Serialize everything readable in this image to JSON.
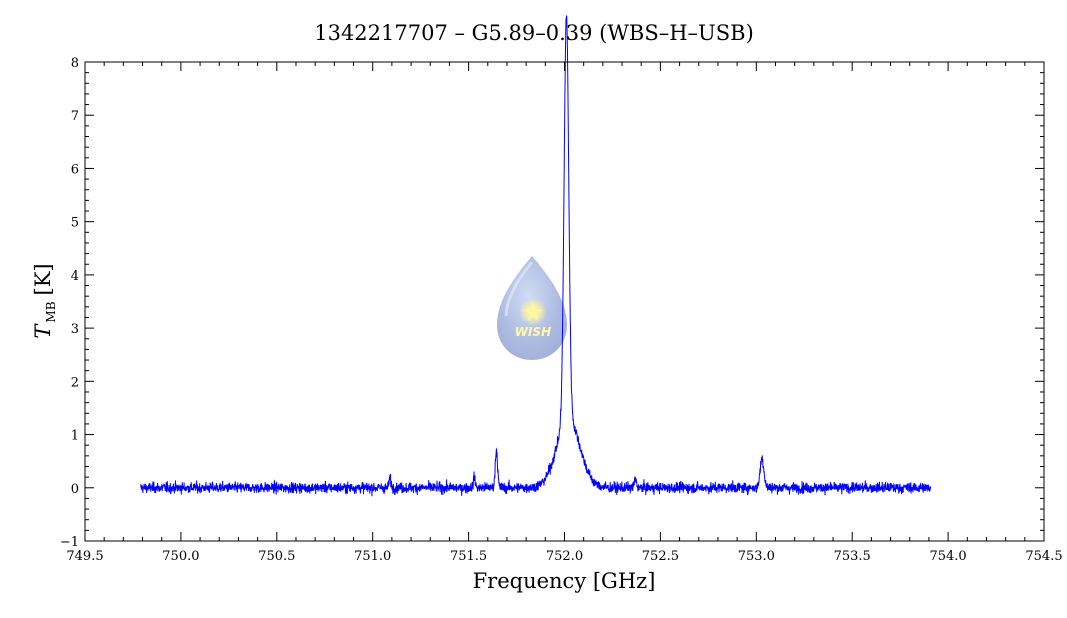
{
  "chart_data": {
    "type": "line",
    "title": "1342217707 – G5.89–0.39 (WBS–H–USB)",
    "xlabel": "Frequency [GHz]",
    "ylabel_main": "T",
    "ylabel_sub": "MB",
    "ylabel_unit": "[K]",
    "xlim": [
      749.5,
      754.5
    ],
    "ylim": [
      -1,
      8
    ],
    "x_ticks": [
      749.5,
      750.0,
      750.5,
      751.0,
      751.5,
      752.0,
      752.5,
      753.0,
      753.5,
      754.0,
      754.5
    ],
    "x_tick_labels": [
      "749.5",
      "750.0",
      "750.5",
      "751.0",
      "751.5",
      "752.0",
      "752.5",
      "753.0",
      "753.5",
      "754.0",
      "754.5"
    ],
    "y_ticks": [
      -1,
      0,
      1,
      2,
      3,
      4,
      5,
      6,
      7,
      8
    ],
    "y_tick_labels": [
      "−1",
      "0",
      "1",
      "2",
      "3",
      "4",
      "5",
      "6",
      "7",
      "8"
    ],
    "line_color": "#0000ff",
    "spectrum": {
      "x_start": 749.79,
      "x_end": 753.91,
      "noise_rms": 0.05,
      "baseline": 0.0,
      "features": [
        {
          "center": 752.01,
          "peak": 7.6,
          "description_width_ghz": 0.012
        },
        {
          "center": 752.02,
          "peak": 1.3,
          "description_width_ghz": 0.06
        },
        {
          "center": 751.645,
          "peak": 0.72,
          "description_width_ghz": 0.006
        },
        {
          "center": 753.03,
          "peak": 0.55,
          "description_width_ghz": 0.01
        },
        {
          "center": 751.53,
          "peak": 0.2,
          "description_width_ghz": 0.005
        },
        {
          "center": 751.09,
          "peak": 0.17,
          "description_width_ghz": 0.005
        },
        {
          "center": 752.37,
          "peak": 0.15,
          "description_width_ghz": 0.006
        }
      ]
    },
    "grid": false
  },
  "logo": {
    "text": "WISH",
    "color": "#9aaad8"
  }
}
